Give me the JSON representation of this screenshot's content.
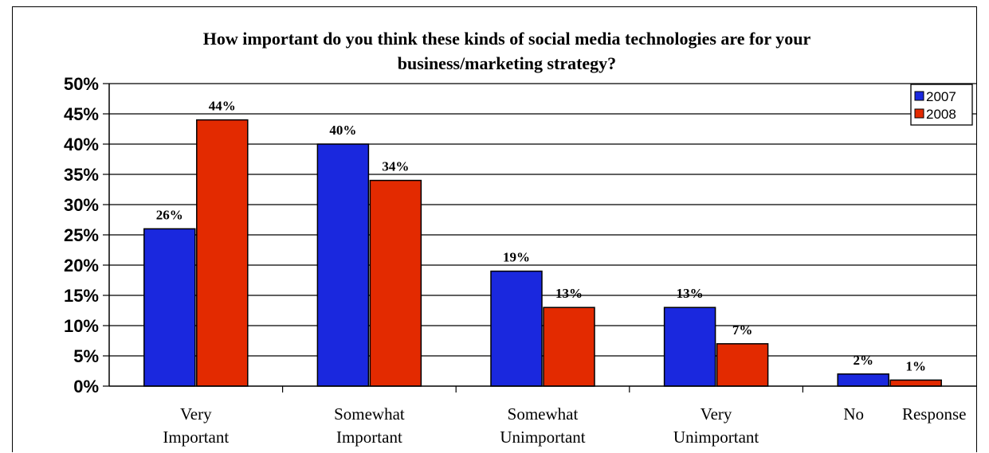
{
  "chart_data": {
    "type": "bar",
    "title_lines": [
      "How important do you think these kinds of social media technologies are for your",
      "business/marketing strategy?"
    ],
    "categories": [
      [
        "Very",
        "Important"
      ],
      [
        "Somewhat",
        "Important"
      ],
      [
        "Somewhat",
        "Unimportant"
      ],
      [
        "Very",
        "Unimportant"
      ],
      [
        "No",
        "Response"
      ]
    ],
    "series": [
      {
        "name": "2007",
        "color": "#1a28de",
        "values": [
          26,
          40,
          19,
          13,
          2
        ],
        "labels": [
          "26%",
          "40%",
          "19%",
          "13%",
          "2%"
        ]
      },
      {
        "name": "2008",
        "color": "#e32a00",
        "values": [
          44,
          34,
          13,
          7,
          1
        ],
        "labels": [
          "44%",
          "34%",
          "13%",
          "7%",
          "1%"
        ]
      }
    ],
    "y_ticks": [
      0,
      5,
      10,
      15,
      20,
      25,
      30,
      35,
      40,
      45,
      50
    ],
    "y_tick_labels": [
      "0%",
      "5%",
      "10%",
      "15%",
      "20%",
      "25%",
      "30%",
      "35%",
      "40%",
      "45%",
      "50%"
    ],
    "ylim": [
      0,
      50
    ],
    "grid": true,
    "legend_position": "top-right"
  }
}
